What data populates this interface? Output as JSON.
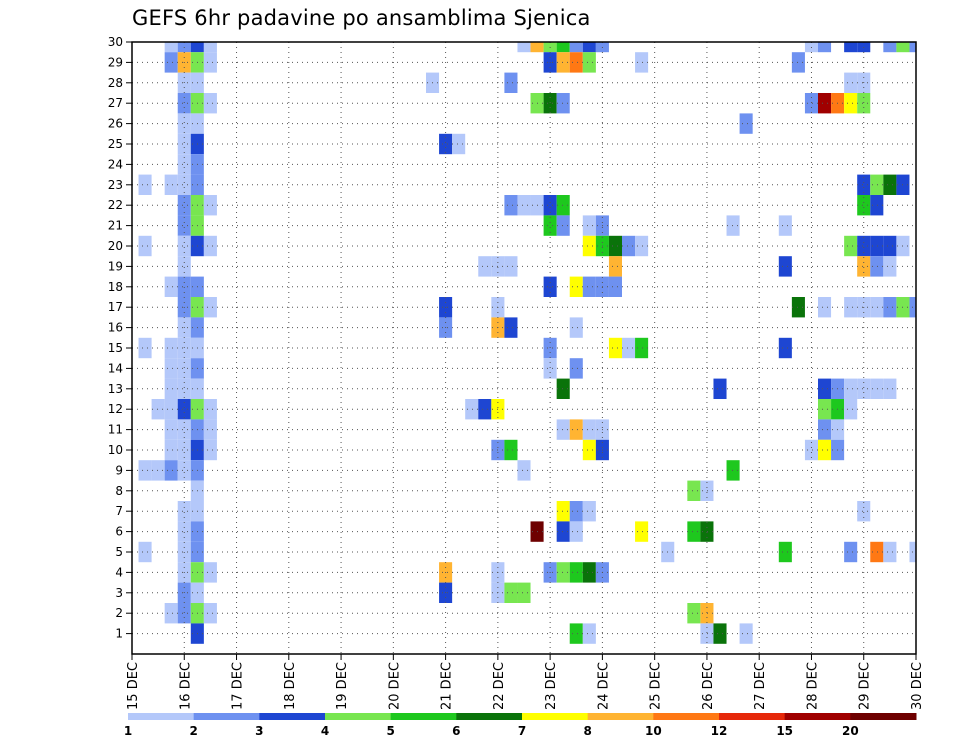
{
  "chart_data": {
    "type": "heatmap",
    "title": "GEFS 6hr padavine po ansamblima Sjenica",
    "xlabel": "",
    "ylabel": "",
    "x_ticks": [
      "15 DEC",
      "16 DEC",
      "17 DEC",
      "18 DEC",
      "19 DEC",
      "20 DEC",
      "21 DEC",
      "22 DEC",
      "23 DEC",
      "24 DEC",
      "25 DEC",
      "26 DEC",
      "27 DEC",
      "28 DEC",
      "29 DEC",
      "30 DEC"
    ],
    "x_range_days": [
      15,
      30
    ],
    "y_ticks": [
      1,
      2,
      3,
      4,
      5,
      6,
      7,
      8,
      9,
      10,
      11,
      12,
      13,
      14,
      15,
      16,
      17,
      18,
      19,
      20,
      21,
      22,
      23,
      24,
      25,
      26,
      27,
      28,
      29,
      30
    ],
    "y_range": [
      0,
      30
    ],
    "grid": true,
    "levels": [
      {
        "label": "1",
        "color": "#b4c8fa"
      },
      {
        "label": "2",
        "color": "#6e91f0"
      },
      {
        "label": "3",
        "color": "#1e46d2"
      },
      {
        "label": "4",
        "color": "#78e650"
      },
      {
        "label": "5",
        "color": "#1ec81e"
      },
      {
        "label": "6",
        "color": "#0a730a"
      },
      {
        "label": "7",
        "color": "#ffff00"
      },
      {
        "label": "8",
        "color": "#ffb432"
      },
      {
        "label": "10",
        "color": "#ff7814"
      },
      {
        "label": "12",
        "color": "#e6280a"
      },
      {
        "label": "15",
        "color": "#a00000"
      },
      {
        "label": "20",
        "color": "#6e0000"
      }
    ],
    "cells": [
      [
        15.75,
        30,
        0
      ],
      [
        16,
        30,
        1
      ],
      [
        16.25,
        30,
        2
      ],
      [
        16.5,
        30,
        0
      ],
      [
        22.5,
        30,
        0
      ],
      [
        22.75,
        30,
        7
      ],
      [
        23,
        30,
        3
      ],
      [
        23.25,
        30,
        4
      ],
      [
        23.5,
        30,
        1
      ],
      [
        23.75,
        30,
        2
      ],
      [
        24,
        30,
        1
      ],
      [
        28,
        30,
        0
      ],
      [
        28.25,
        30,
        1
      ],
      [
        28.75,
        30,
        2
      ],
      [
        29,
        30,
        2
      ],
      [
        29.5,
        30,
        1
      ],
      [
        29.75,
        30,
        3
      ],
      [
        30,
        30,
        1
      ],
      [
        15.75,
        29,
        1
      ],
      [
        16,
        29,
        7
      ],
      [
        16.25,
        29,
        3
      ],
      [
        16.5,
        29,
        0
      ],
      [
        23,
        29,
        2
      ],
      [
        23.25,
        29,
        7
      ],
      [
        23.5,
        29,
        8
      ],
      [
        23.75,
        29,
        3
      ],
      [
        24.75,
        29,
        0
      ],
      [
        27.75,
        29,
        1
      ],
      [
        16,
        28,
        0
      ],
      [
        16.25,
        28,
        0
      ],
      [
        20.75,
        28,
        0
      ],
      [
        22.25,
        28,
        1
      ],
      [
        28.75,
        28,
        0
      ],
      [
        29,
        28,
        0
      ],
      [
        16,
        27,
        1
      ],
      [
        16.25,
        27,
        3
      ],
      [
        16.5,
        27,
        0
      ],
      [
        22.75,
        27,
        3
      ],
      [
        23,
        27,
        5
      ],
      [
        23.25,
        27,
        1
      ],
      [
        28,
        27,
        1
      ],
      [
        28.25,
        27,
        10
      ],
      [
        28.5,
        27,
        8
      ],
      [
        28.75,
        27,
        6
      ],
      [
        29,
        27,
        3
      ],
      [
        16,
        26,
        0
      ],
      [
        16.25,
        26,
        0
      ],
      [
        26.75,
        26,
        1
      ],
      [
        16,
        25,
        0
      ],
      [
        16.25,
        25,
        2
      ],
      [
        21,
        25,
        2
      ],
      [
        21.25,
        25,
        0
      ],
      [
        16,
        24,
        0
      ],
      [
        16.25,
        24,
        1
      ],
      [
        15.25,
        23,
        0
      ],
      [
        15.75,
        23,
        0
      ],
      [
        16,
        23,
        0
      ],
      [
        16.25,
        23,
        1
      ],
      [
        29,
        23,
        2
      ],
      [
        29.25,
        23,
        3
      ],
      [
        29.5,
        23,
        5
      ],
      [
        29.75,
        23,
        2
      ],
      [
        16,
        22,
        1
      ],
      [
        16.25,
        22,
        3
      ],
      [
        16.5,
        22,
        0
      ],
      [
        22.25,
        22,
        1
      ],
      [
        22.5,
        22,
        0
      ],
      [
        22.75,
        22,
        0
      ],
      [
        23,
        22,
        2
      ],
      [
        23.25,
        22,
        4
      ],
      [
        29,
        22,
        4
      ],
      [
        29.25,
        22,
        2
      ],
      [
        16,
        21,
        1
      ],
      [
        16.25,
        21,
        3
      ],
      [
        23,
        21,
        4
      ],
      [
        23.25,
        21,
        1
      ],
      [
        23.75,
        21,
        0
      ],
      [
        24,
        21,
        1
      ],
      [
        26.5,
        21,
        0
      ],
      [
        27.5,
        21,
        0
      ],
      [
        15.25,
        20,
        0
      ],
      [
        16,
        20,
        0
      ],
      [
        16.25,
        20,
        2
      ],
      [
        16.5,
        20,
        0
      ],
      [
        23.75,
        20,
        6
      ],
      [
        24,
        20,
        4
      ],
      [
        24.25,
        20,
        5
      ],
      [
        24.5,
        20,
        1
      ],
      [
        24.75,
        20,
        0
      ],
      [
        28.75,
        20,
        3
      ],
      [
        29,
        20,
        2
      ],
      [
        29.25,
        20,
        2
      ],
      [
        29.5,
        20,
        2
      ],
      [
        29.75,
        20,
        0
      ],
      [
        16,
        19,
        0
      ],
      [
        21.75,
        19,
        0
      ],
      [
        22,
        19,
        0
      ],
      [
        22.25,
        19,
        0
      ],
      [
        24.25,
        19,
        7
      ],
      [
        27.5,
        19,
        2
      ],
      [
        29,
        19,
        7
      ],
      [
        29.25,
        19,
        1
      ],
      [
        29.5,
        19,
        0
      ],
      [
        15.75,
        18,
        0
      ],
      [
        16,
        18,
        1
      ],
      [
        16.25,
        18,
        1
      ],
      [
        23,
        18,
        2
      ],
      [
        23.5,
        18,
        6
      ],
      [
        23.75,
        18,
        1
      ],
      [
        24,
        18,
        1
      ],
      [
        24.25,
        18,
        1
      ],
      [
        16,
        17,
        1
      ],
      [
        16.25,
        17,
        3
      ],
      [
        16.5,
        17,
        0
      ],
      [
        21,
        17,
        2
      ],
      [
        22,
        17,
        0
      ],
      [
        28.25,
        17,
        0
      ],
      [
        28.75,
        17,
        0
      ],
      [
        29,
        17,
        0
      ],
      [
        29.25,
        17,
        0
      ],
      [
        29.5,
        17,
        1
      ],
      [
        29.75,
        17,
        3
      ],
      [
        30,
        17,
        1
      ],
      [
        27.75,
        17,
        5
      ],
      [
        16,
        16,
        0
      ],
      [
        16.25,
        16,
        1
      ],
      [
        21,
        16,
        1
      ],
      [
        22,
        16,
        7
      ],
      [
        22.25,
        16,
        2
      ],
      [
        23.5,
        16,
        0
      ],
      [
        15.25,
        15,
        0
      ],
      [
        15.75,
        15,
        0
      ],
      [
        16,
        15,
        0
      ],
      [
        16.25,
        15,
        0
      ],
      [
        23,
        15,
        1
      ],
      [
        24.25,
        15,
        6
      ],
      [
        24.5,
        15,
        0
      ],
      [
        24.75,
        15,
        4
      ],
      [
        27.5,
        15,
        2
      ],
      [
        15.75,
        14,
        0
      ],
      [
        16,
        14,
        0
      ],
      [
        16.25,
        14,
        1
      ],
      [
        23,
        14,
        0
      ],
      [
        23.5,
        14,
        1
      ],
      [
        15.75,
        13,
        0
      ],
      [
        16,
        13,
        0
      ],
      [
        16.25,
        13,
        0
      ],
      [
        23.25,
        13,
        5
      ],
      [
        26.25,
        13,
        2
      ],
      [
        28.25,
        13,
        2
      ],
      [
        28.5,
        13,
        1
      ],
      [
        28.75,
        13,
        0
      ],
      [
        29,
        13,
        0
      ],
      [
        29.25,
        13,
        0
      ],
      [
        29.5,
        13,
        0
      ],
      [
        15.5,
        12,
        0
      ],
      [
        15.75,
        12,
        0
      ],
      [
        16,
        12,
        2
      ],
      [
        16.25,
        12,
        3
      ],
      [
        16.5,
        12,
        0
      ],
      [
        21.5,
        12,
        0
      ],
      [
        21.75,
        12,
        2
      ],
      [
        22,
        12,
        6
      ],
      [
        28.25,
        12,
        3
      ],
      [
        28.5,
        12,
        4
      ],
      [
        28.75,
        12,
        0
      ],
      [
        15.75,
        11,
        0
      ],
      [
        16,
        11,
        0
      ],
      [
        16.25,
        11,
        1
      ],
      [
        16.5,
        11,
        0
      ],
      [
        23.25,
        11,
        0
      ],
      [
        23.5,
        11,
        7
      ],
      [
        23.75,
        11,
        0
      ],
      [
        24,
        11,
        0
      ],
      [
        28.25,
        11,
        1
      ],
      [
        28.5,
        11,
        0
      ],
      [
        15.75,
        10,
        0
      ],
      [
        16,
        10,
        0
      ],
      [
        16.25,
        10,
        2
      ],
      [
        16.5,
        10,
        0
      ],
      [
        22,
        10,
        1
      ],
      [
        22.25,
        10,
        4
      ],
      [
        23.75,
        10,
        6
      ],
      [
        24,
        10,
        2
      ],
      [
        28,
        10,
        0
      ],
      [
        28.25,
        10,
        6
      ],
      [
        28.5,
        10,
        1
      ],
      [
        15.25,
        9,
        0
      ],
      [
        15.5,
        9,
        0
      ],
      [
        15.75,
        9,
        1
      ],
      [
        16,
        9,
        0
      ],
      [
        16.25,
        9,
        1
      ],
      [
        22.5,
        9,
        0
      ],
      [
        26.5,
        9,
        4
      ],
      [
        16.25,
        8,
        0
      ],
      [
        25.75,
        8,
        3
      ],
      [
        26,
        8,
        0
      ],
      [
        16,
        7,
        0
      ],
      [
        16.25,
        7,
        0
      ],
      [
        23.25,
        7,
        6
      ],
      [
        23.5,
        7,
        1
      ],
      [
        23.75,
        7,
        0
      ],
      [
        29,
        7,
        0
      ],
      [
        16,
        6,
        0
      ],
      [
        16.25,
        6,
        1
      ],
      [
        22.75,
        6,
        11
      ],
      [
        23.25,
        6,
        2
      ],
      [
        23.5,
        6,
        0
      ],
      [
        24.75,
        6,
        6
      ],
      [
        25.75,
        6,
        4
      ],
      [
        26,
        6,
        5
      ],
      [
        15.25,
        5,
        0
      ],
      [
        16,
        5,
        0
      ],
      [
        16.25,
        5,
        1
      ],
      [
        25.25,
        5,
        0
      ],
      [
        27.5,
        5,
        4
      ],
      [
        28.75,
        5,
        1
      ],
      [
        29.25,
        5,
        8
      ],
      [
        29.5,
        5,
        0
      ],
      [
        30,
        5,
        0
      ],
      [
        16,
        4,
        0
      ],
      [
        16.25,
        4,
        3
      ],
      [
        16.5,
        4,
        0
      ],
      [
        21,
        4,
        7
      ],
      [
        22,
        4,
        0
      ],
      [
        23,
        4,
        1
      ],
      [
        23.25,
        4,
        3
      ],
      [
        23.5,
        4,
        4
      ],
      [
        23.75,
        4,
        5
      ],
      [
        24,
        4,
        1
      ],
      [
        16,
        3,
        1
      ],
      [
        16.25,
        3,
        0
      ],
      [
        21,
        3,
        2
      ],
      [
        22,
        3,
        0
      ],
      [
        22.25,
        3,
        3
      ],
      [
        22.5,
        3,
        3
      ],
      [
        15.75,
        2,
        0
      ],
      [
        16,
        2,
        1
      ],
      [
        16.25,
        2,
        3
      ],
      [
        16.5,
        2,
        0
      ],
      [
        25.75,
        2,
        3
      ],
      [
        26,
        2,
        7
      ],
      [
        16.25,
        1,
        2
      ],
      [
        23.5,
        1,
        4
      ],
      [
        23.75,
        1,
        0
      ],
      [
        26,
        1,
        0
      ],
      [
        26.25,
        1,
        5
      ],
      [
        26.75,
        1,
        0
      ]
    ]
  }
}
